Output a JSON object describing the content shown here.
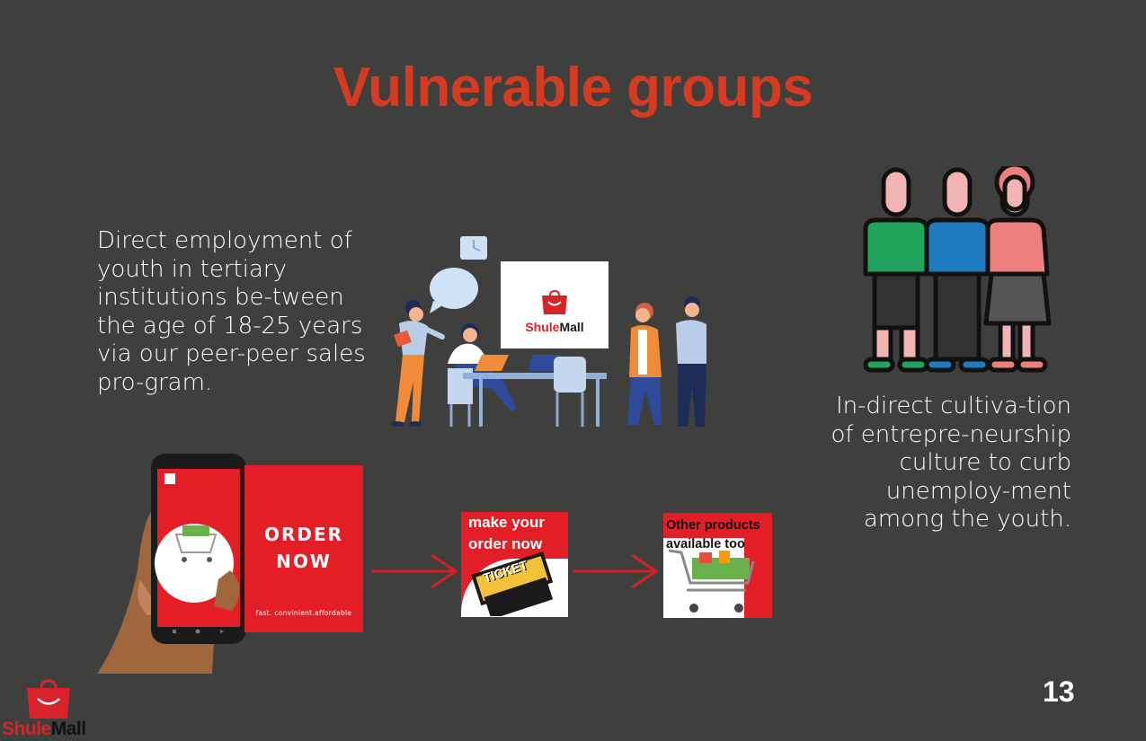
{
  "slide": {
    "title": "Vulnerable groups",
    "left_text": "Direct employment of youth in tertiary institutions be-tween the age of 18-25 years via our peer-peer sales pro-gram.",
    "right_text": "In-direct cultiva-tion of entrepre-neurship culture to curb unemploy-ment among the youth.",
    "page_number": "13"
  },
  "brand": {
    "part1": "Shule",
    "part2": "Mall",
    "accent": "#d8232a"
  },
  "order_panel": {
    "line1": "ORDER",
    "line2": "NOW",
    "tagline": "fast. convinient.affordable"
  },
  "card_make": {
    "line1": "make your",
    "line2": "order now",
    "ticket_label": "TICKET"
  },
  "card_other": {
    "line1": "Other products",
    "line2": "available too"
  },
  "colors": {
    "background": "#3f3f3e",
    "title": "#d63b22",
    "panel_red": "#e31e26"
  }
}
